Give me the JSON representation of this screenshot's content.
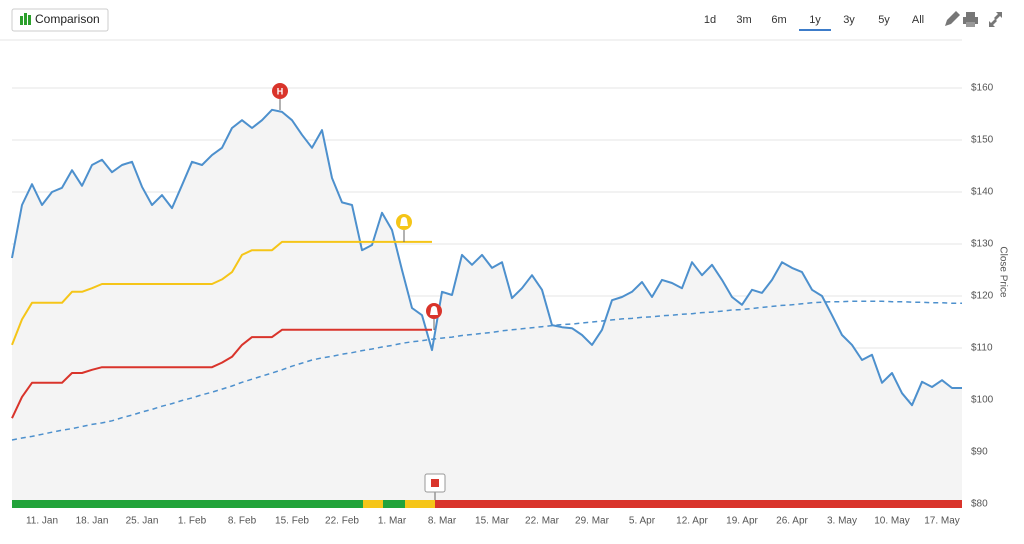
{
  "toolbar": {
    "button": "Comparison",
    "ranges": [
      "1d",
      "3m",
      "6m",
      "1y",
      "3y",
      "5y",
      "All"
    ],
    "active_range": "1y"
  },
  "markers": {
    "high_label": "H"
  },
  "chart_data": {
    "type": "line",
    "y_axis_label": "Close Price",
    "categories": [
      null,
      null,
      null,
      "11. Jan",
      null,
      null,
      null,
      null,
      "18. Jan",
      null,
      null,
      null,
      null,
      "25. Jan",
      null,
      null,
      null,
      null,
      "1. Feb",
      null,
      null,
      null,
      null,
      "8. Feb",
      null,
      null,
      null,
      null,
      "15. Feb",
      null,
      null,
      null,
      null,
      "22. Feb",
      null,
      null,
      null,
      null,
      "1. Mar",
      null,
      null,
      null,
      null,
      "8. Mar",
      null,
      null,
      null,
      null,
      "15. Mar",
      null,
      null,
      null,
      null,
      "22. Mar",
      null,
      null,
      null,
      null,
      "29. Mar",
      null,
      null,
      null,
      null,
      "5. Apr",
      null,
      null,
      null,
      null,
      "12. Apr",
      null,
      null,
      null,
      null,
      "19. Apr",
      null,
      null,
      null,
      null,
      "26. Apr",
      null,
      null,
      null,
      null,
      "3. May",
      null,
      null,
      null,
      null,
      "10. May",
      null,
      null,
      null,
      null,
      "17. May",
      null,
      null
    ],
    "series": [
      {
        "color": "#4d90cd",
        "area": true,
        "values": [
          127.3,
          137.5,
          141.5,
          137.5,
          140,
          140.8,
          144.2,
          141.2,
          145.2,
          146.2,
          143.8,
          145.2,
          145.8,
          141,
          137.5,
          139.4,
          136.9,
          141.3,
          145.8,
          145.2,
          147.1,
          148.5,
          152.3,
          153.8,
          152.3,
          153.8,
          155.8,
          155.4,
          153.8,
          151,
          148.5,
          151.9,
          142.7,
          138,
          137.5,
          128.8,
          129.8,
          136,
          132.7,
          125,
          117.7,
          116.3,
          109.6,
          120.8,
          120.2,
          127.9,
          126,
          127.9,
          125.4,
          126.5,
          119.6,
          121.5,
          124,
          121.2,
          114.4,
          114,
          113.8,
          112.5,
          110.6,
          113.5,
          119.2,
          119.8,
          120.8,
          122.7,
          119.8,
          123.1,
          122.5,
          121.5,
          126.5,
          124,
          126,
          123.1,
          119.8,
          118.3,
          121.2,
          120.6,
          123.1,
          126.5,
          125.4,
          124.6,
          121.2,
          120,
          116.3,
          112.5,
          110.6,
          107.7,
          108.7,
          103.3,
          105.2,
          101.3,
          99,
          103.5,
          102.5,
          103.8,
          102.3,
          102.3
        ]
      },
      {
        "color": "#f5c518",
        "values": [
          110.6,
          115.5,
          118.7,
          118.7,
          118.7,
          118.7,
          120.8,
          120.8,
          121.5,
          122.3,
          122.3,
          122.3,
          122.3,
          122.3,
          122.3,
          122.3,
          122.3,
          122.3,
          122.3,
          122.3,
          122.3,
          123.2,
          124.6,
          127.9,
          128.8,
          128.8,
          128.8,
          130.4,
          130.4,
          130.4,
          130.4,
          130.4,
          130.4,
          130.4,
          130.4,
          130.4,
          130.4,
          130.4,
          130.4,
          130.4,
          130.4,
          130.4,
          130.4,
          null,
          null,
          null,
          null,
          null,
          null,
          null,
          null,
          null,
          null,
          null,
          null,
          null,
          null,
          null,
          null,
          null,
          null,
          null,
          null,
          null,
          null,
          null,
          null,
          null,
          null,
          null,
          null,
          null,
          null,
          null,
          null,
          null,
          null,
          null,
          null,
          null,
          null,
          null,
          null,
          null,
          null,
          null,
          null,
          null,
          null,
          null,
          null,
          null,
          null,
          null,
          null,
          null
        ]
      },
      {
        "color": "#d9342b",
        "values": [
          96.5,
          100.6,
          103.3,
          103.3,
          103.3,
          103.3,
          105.2,
          105.2,
          105.8,
          106.3,
          106.3,
          106.3,
          106.3,
          106.3,
          106.3,
          106.3,
          106.3,
          106.3,
          106.3,
          106.3,
          106.3,
          107.2,
          108.3,
          110.6,
          112.1,
          112.1,
          112.1,
          113.5,
          113.5,
          113.5,
          113.5,
          113.5,
          113.5,
          113.5,
          113.5,
          113.5,
          113.5,
          113.5,
          113.5,
          113.5,
          113.5,
          113.5,
          113.5,
          null,
          null,
          null,
          null,
          null,
          null,
          null,
          null,
          null,
          null,
          null,
          null,
          null,
          null,
          null,
          null,
          null,
          null,
          null,
          null,
          null,
          null,
          null,
          null,
          null,
          null,
          null,
          null,
          null,
          null,
          null,
          null,
          null,
          null,
          null,
          null,
          null,
          null,
          null,
          null,
          null,
          null,
          null,
          null,
          null,
          null,
          null,
          null,
          null,
          null,
          null,
          null,
          null
        ]
      },
      {
        "color": "#4d90cd",
        "dashed": true,
        "values": [
          92.3,
          92.7,
          93.0,
          93.4,
          93.8,
          94.2,
          94.5,
          94.9,
          95.3,
          95.6,
          96.0,
          96.6,
          97.1,
          97.7,
          98.2,
          98.8,
          99.3,
          99.9,
          100.4,
          101.0,
          101.5,
          102.1,
          102.7,
          103.4,
          104.0,
          104.6,
          105.2,
          105.8,
          106.5,
          107.1,
          107.7,
          108.1,
          108.4,
          108.8,
          109.1,
          109.5,
          109.8,
          110.2,
          110.5,
          110.9,
          111.2,
          111.4,
          111.7,
          111.9,
          112.1,
          112.4,
          112.6,
          112.8,
          113.0,
          113.3,
          113.5,
          113.7,
          113.9,
          114.1,
          114.3,
          114.5,
          114.6,
          114.8,
          115.0,
          115.2,
          115.4,
          115.6,
          115.7,
          115.9,
          116.0,
          116.2,
          116.3,
          116.5,
          116.6,
          116.8,
          116.9,
          117.1,
          117.3,
          117.4,
          117.6,
          117.8,
          118.0,
          118.2,
          118.3,
          118.5,
          118.7,
          118.8,
          118.9,
          118.9,
          119.0,
          119.0,
          119.0,
          119.0,
          118.9,
          118.9,
          118.8,
          118.8,
          118.7,
          118.7,
          118.6,
          118.6
        ]
      }
    ],
    "ylim": [
      80,
      170
    ],
    "yticks": [
      {
        "value": 80,
        "label": "$80"
      },
      {
        "value": 90,
        "label": "$90"
      },
      {
        "value": 100,
        "label": "$100"
      },
      {
        "value": 110,
        "label": "$110"
      },
      {
        "value": 120,
        "label": "$120"
      },
      {
        "value": 130,
        "label": "$130"
      },
      {
        "value": 140,
        "label": "$140"
      },
      {
        "value": 150,
        "label": "$150"
      },
      {
        "value": 160,
        "label": "$160"
      }
    ],
    "grid": true
  }
}
